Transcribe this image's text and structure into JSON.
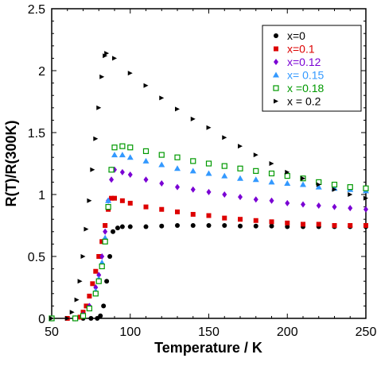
{
  "chart_data": {
    "type": "scatter",
    "title": "",
    "xlabel": "Temperature / K",
    "ylabel": "R(T)/R(300K)",
    "xlim": [
      50,
      250
    ],
    "ylim": [
      0,
      2.5
    ],
    "x_ticks": [
      50,
      100,
      150,
      200,
      250
    ],
    "y_ticks": [
      0,
      0.5,
      1,
      1.5,
      2,
      2.5
    ],
    "x_tick_labels": [
      "50",
      "100",
      "150",
      "200",
      "250"
    ],
    "y_tick_labels": [
      "0",
      "0.5",
      "1",
      "1.5",
      "2",
      "2.5"
    ],
    "grid": false,
    "legend_position": "top-right",
    "series": [
      {
        "name": "x=0",
        "color": "#000000",
        "marker": "circle",
        "x": [
          50,
          60,
          70,
          75,
          79,
          81,
          83,
          85,
          87,
          89,
          92,
          95,
          100,
          110,
          120,
          130,
          140,
          150,
          160,
          170,
          180,
          190,
          200,
          210,
          220,
          230,
          240,
          250
        ],
        "y": [
          0,
          0,
          0,
          0,
          0,
          0.02,
          0.1,
          0.3,
          0.5,
          0.7,
          0.73,
          0.74,
          0.74,
          0.74,
          0.745,
          0.75,
          0.75,
          0.75,
          0.75,
          0.745,
          0.745,
          0.745,
          0.74,
          0.74,
          0.74,
          0.74,
          0.74,
          0.74
        ]
      },
      {
        "name": "x=0.1",
        "color": "#dd0000",
        "marker": "square",
        "x": [
          50,
          60,
          65,
          68,
          70,
          72,
          74,
          76,
          78,
          80,
          82,
          84,
          86,
          88,
          90,
          95,
          100,
          110,
          120,
          130,
          140,
          150,
          160,
          170,
          180,
          190,
          200,
          210,
          220,
          230,
          240,
          250
        ],
        "y": [
          0,
          0,
          0,
          0.01,
          0.05,
          0.1,
          0.18,
          0.28,
          0.38,
          0.5,
          0.62,
          0.75,
          0.88,
          0.97,
          0.97,
          0.95,
          0.93,
          0.9,
          0.88,
          0.86,
          0.84,
          0.83,
          0.81,
          0.8,
          0.79,
          0.78,
          0.77,
          0.76,
          0.76,
          0.75,
          0.75,
          0.75
        ]
      },
      {
        "name": "x=0.12",
        "color": "#7a00d4",
        "marker": "diamond",
        "x": [
          50,
          65,
          70,
          74,
          78,
          80,
          82,
          84,
          86,
          88,
          90,
          95,
          100,
          110,
          120,
          130,
          140,
          150,
          160,
          170,
          180,
          190,
          200,
          210,
          220,
          230,
          240,
          250
        ],
        "y": [
          0,
          0,
          0.03,
          0.1,
          0.25,
          0.35,
          0.5,
          0.7,
          0.95,
          1.12,
          1.2,
          1.18,
          1.16,
          1.12,
          1.09,
          1.06,
          1.04,
          1.02,
          1.0,
          0.98,
          0.96,
          0.95,
          0.93,
          0.92,
          0.91,
          0.9,
          0.89,
          0.88
        ]
      },
      {
        "name": "x= 0.15",
        "color": "#3399ff",
        "marker": "triangle",
        "x": [
          50,
          65,
          70,
          74,
          78,
          80,
          82,
          84,
          86,
          88,
          90,
          95,
          100,
          110,
          120,
          130,
          140,
          150,
          160,
          170,
          180,
          190,
          200,
          210,
          220,
          230,
          240,
          250
        ],
        "y": [
          0,
          0,
          0.02,
          0.08,
          0.22,
          0.32,
          0.45,
          0.65,
          0.95,
          1.2,
          1.32,
          1.32,
          1.3,
          1.27,
          1.24,
          1.21,
          1.19,
          1.17,
          1.15,
          1.13,
          1.12,
          1.1,
          1.09,
          1.08,
          1.06,
          1.05,
          1.04,
          1.03
        ]
      },
      {
        "name": "x =0.18",
        "color": "#009900",
        "marker": "square-open",
        "x": [
          50,
          65,
          70,
          74,
          78,
          80,
          82,
          84,
          86,
          88,
          90,
          95,
          100,
          110,
          120,
          130,
          140,
          150,
          160,
          170,
          180,
          190,
          200,
          210,
          220,
          230,
          240,
          250
        ],
        "y": [
          0,
          0,
          0.02,
          0.08,
          0.2,
          0.3,
          0.42,
          0.62,
          0.9,
          1.2,
          1.38,
          1.39,
          1.38,
          1.35,
          1.32,
          1.3,
          1.27,
          1.25,
          1.23,
          1.21,
          1.19,
          1.17,
          1.15,
          1.13,
          1.1,
          1.08,
          1.06,
          1.05
        ]
      },
      {
        "name": "x = 0.2",
        "color": "#000000",
        "marker": "triangle-small",
        "x": [
          50,
          60,
          63,
          66,
          68,
          70,
          72,
          74,
          76,
          78,
          80,
          82,
          84,
          85,
          90,
          100,
          110,
          120,
          130,
          140,
          150,
          160,
          170,
          180,
          190,
          200,
          210,
          220,
          230,
          240,
          250
        ],
        "y": [
          0,
          0,
          0.05,
          0.15,
          0.3,
          0.5,
          0.72,
          0.95,
          1.2,
          1.45,
          1.7,
          1.95,
          2.12,
          2.14,
          2.1,
          1.98,
          1.88,
          1.78,
          1.69,
          1.61,
          1.54,
          1.46,
          1.39,
          1.32,
          1.25,
          1.18,
          1.13,
          1.08,
          1.04,
          1.0,
          0.97
        ]
      }
    ]
  }
}
